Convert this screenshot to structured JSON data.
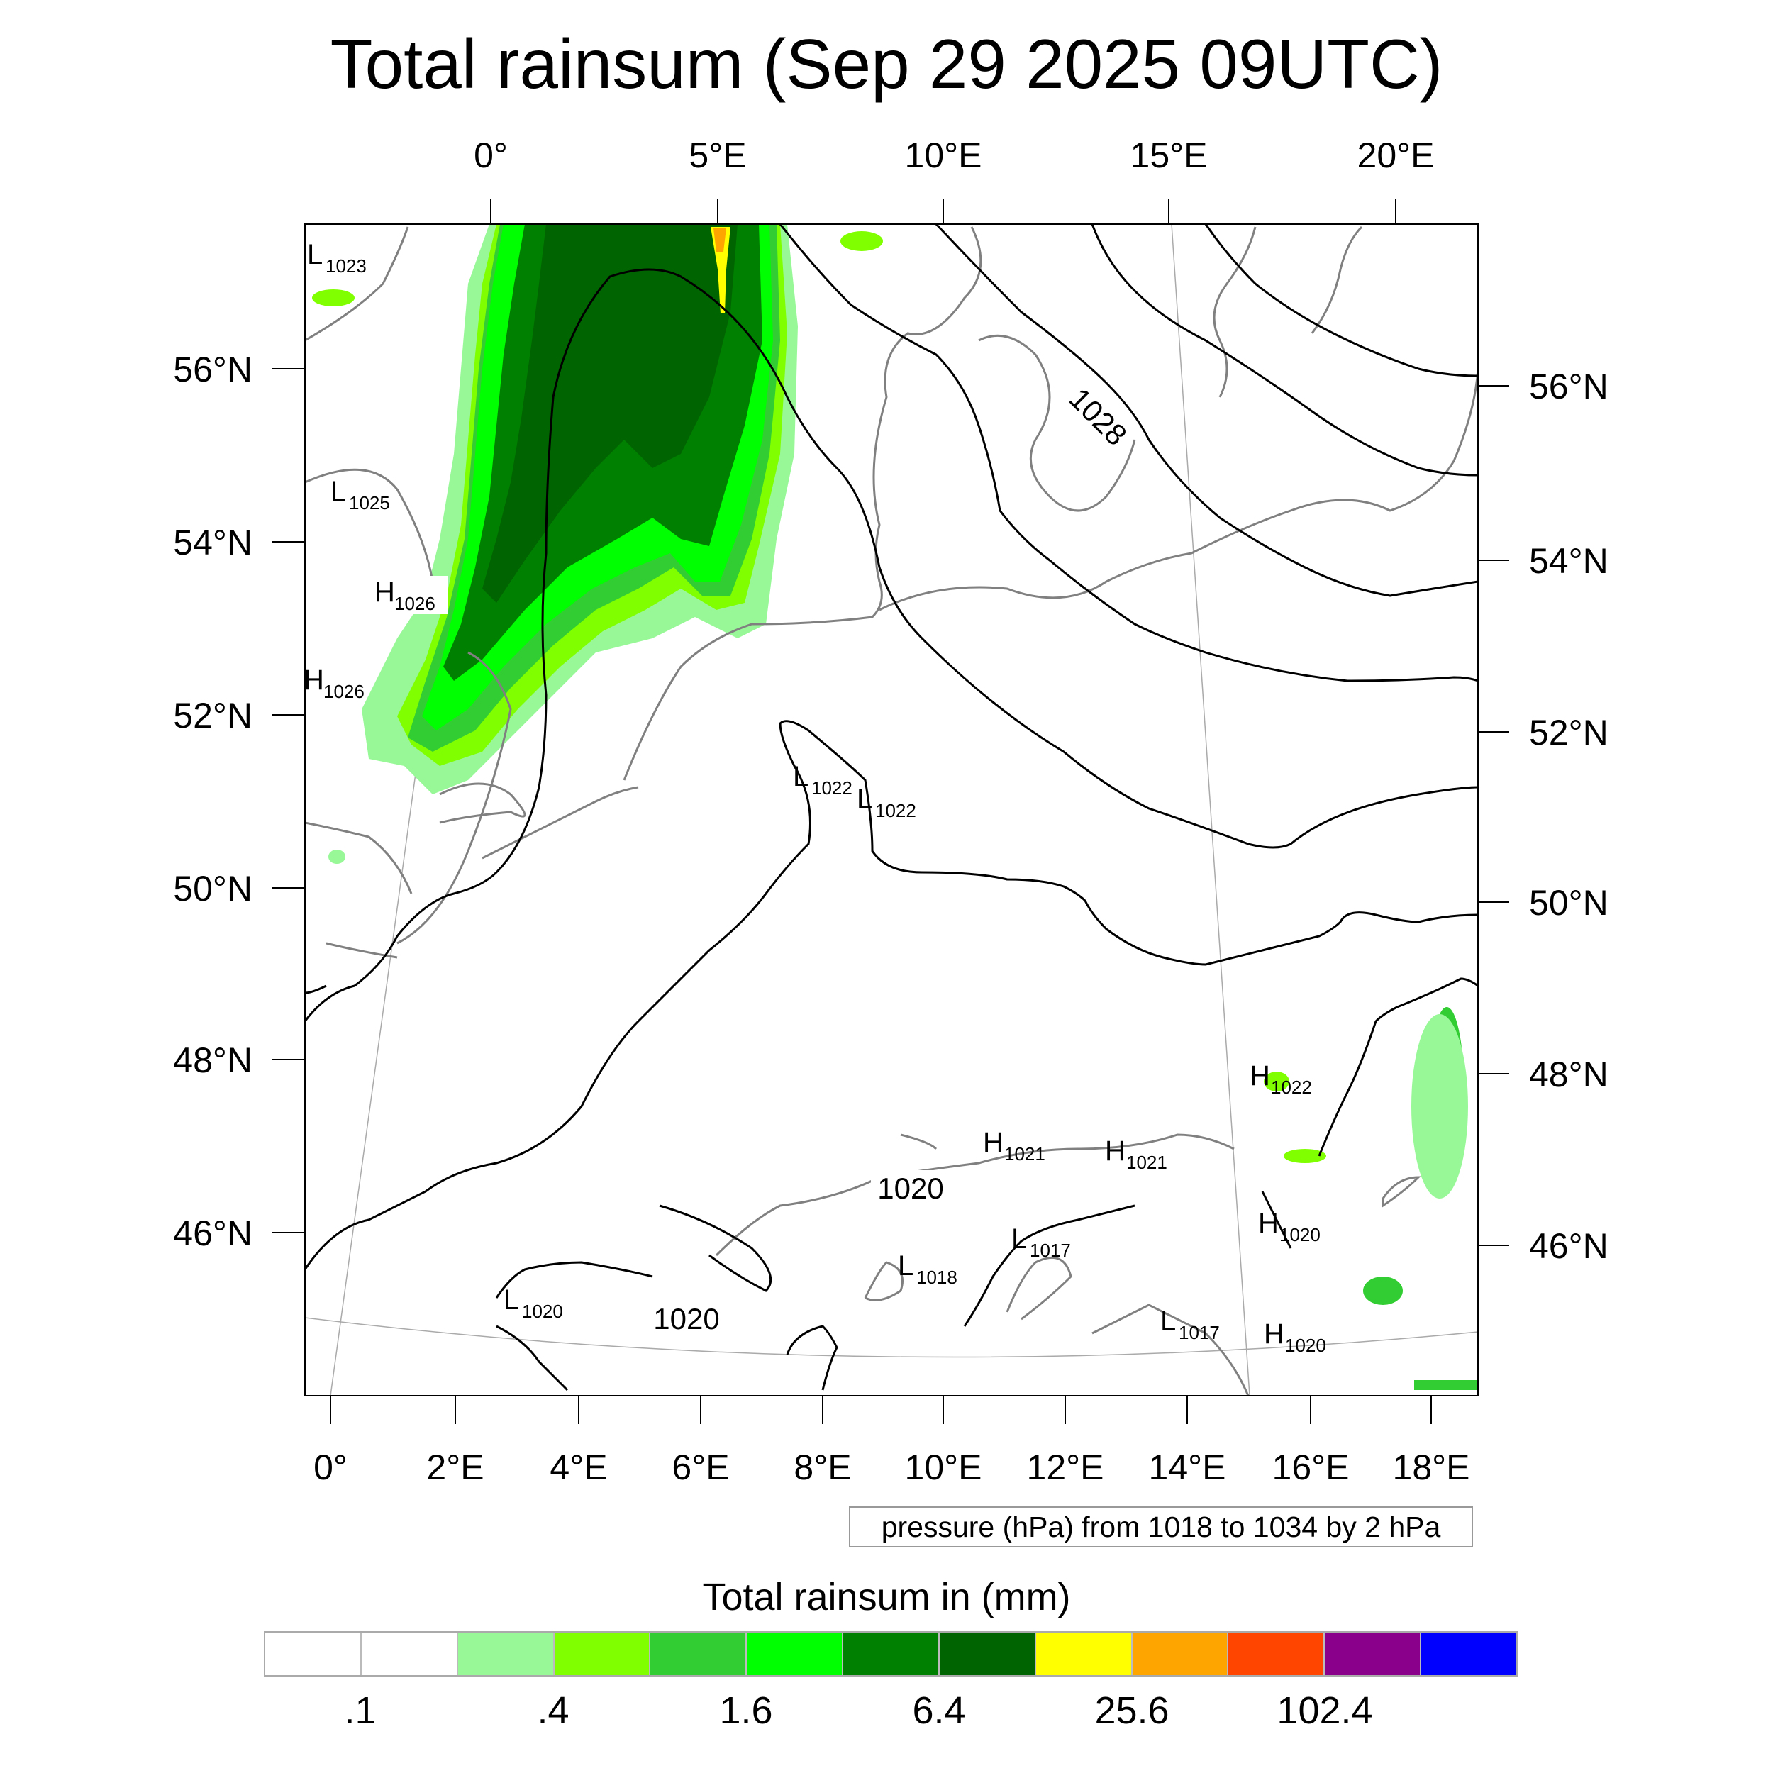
{
  "title": "Total rainsum (Sep 29 2025 09UTC)",
  "map": {
    "lon_top_labels": [
      "0°",
      "5°E",
      "10°E",
      "15°E",
      "20°E"
    ],
    "lat_left_labels": [
      "56°N",
      "54°N",
      "52°N",
      "50°N",
      "48°N",
      "46°N"
    ],
    "lat_right_labels": [
      "56°N",
      "54°N",
      "52°N",
      "50°N",
      "48°N",
      "46°N"
    ],
    "lon_bottom_labels": [
      "0°",
      "2°E",
      "4°E",
      "6°E",
      "8°E",
      "10°E",
      "12°E",
      "14°E",
      "16°E",
      "18°E"
    ],
    "contour_labels": [
      "1028",
      "1020",
      "1020"
    ],
    "pressure_centers": [
      {
        "type": "L",
        "value": "1023"
      },
      {
        "type": "L",
        "value": "1025"
      },
      {
        "type": "H",
        "value": "1026"
      },
      {
        "type": "H",
        "value": "1026"
      },
      {
        "type": "L",
        "value": "1022"
      },
      {
        "type": "L",
        "value": "1022"
      },
      {
        "type": "H",
        "value": "1022"
      },
      {
        "type": "H",
        "value": "1021"
      },
      {
        "type": "H",
        "value": "1021"
      },
      {
        "type": "H",
        "value": "1020"
      },
      {
        "type": "H",
        "value": "1020"
      },
      {
        "type": "L",
        "value": "1017"
      },
      {
        "type": "L",
        "value": "1018"
      },
      {
        "type": "L",
        "value": "1020"
      },
      {
        "type": "L",
        "value": "1017"
      }
    ],
    "colors": {
      "rain_light": "#98f898",
      "rain_lime": "#80ff00",
      "rain_mid": "#32cd32",
      "rain_bright": "#00ff00",
      "rain_dark": "#008000",
      "rain_darker": "#006400",
      "rain_yellow": "#ffff00",
      "rain_orange": "#ffa500",
      "contour": "#000000",
      "coastline": "#808080"
    }
  },
  "info_box": "pressure (hPa) from 1018 to 1034 by 2 hPa",
  "colorbar": {
    "title": "Total rainsum in (mm)",
    "colors": [
      "#ffffff",
      "#ffffff",
      "#98f898",
      "#80ff00",
      "#32cd32",
      "#00ff00",
      "#008000",
      "#006400",
      "#ffff00",
      "#ffa500",
      "#ff4500",
      "#8b008b",
      "#0000ff"
    ],
    "labels": [
      ".1",
      ".4",
      "1.6",
      "6.4",
      "25.6",
      "102.4"
    ]
  }
}
